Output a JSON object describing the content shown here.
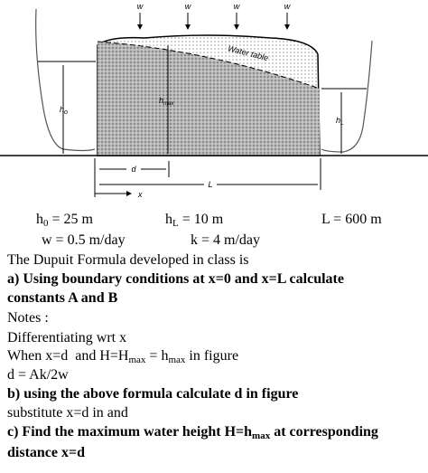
{
  "diagram": {
    "w_labels": [
      "w",
      "w",
      "w",
      "w"
    ],
    "water_table": "Water table",
    "hmax": {
      "main": "h",
      "sub": "max"
    },
    "h0": {
      "main": "h",
      "sub": "o"
    },
    "hL": {
      "main": "h",
      "sub": "L"
    },
    "d": "d",
    "x": "x",
    "L": "L"
  },
  "text": {
    "given1": {
      "h0_main": "h",
      "h0_sub": "0",
      "h0_rest": " = 25 m",
      "hL_main": "h",
      "hL_sub": "L",
      "hL_rest": " = 10 m",
      "L": "L = 600 m"
    },
    "given2": {
      "w": "w = 0.5 m/day",
      "k": "k = 4 m/day"
    },
    "intro": "The Dupuit Formula developed in class is",
    "a_line1": "a) Using boundary conditions at x=0 and x=L calculate",
    "a_line2": "constants A and B",
    "notes": "Notes :",
    "diff": "Differentiating wrt x",
    "when": {
      "p1": "When x=d  and H=H",
      "s1": "max",
      "p2": " = h",
      "s2": "max",
      "p3": " in figure"
    },
    "d_eq": "d = Ak/2w",
    "b": "b) using the above formula calculate d in figure",
    "substitute": "substitute x=d in and",
    "c_line1": {
      "p1": "c) Find the maximum water height H=h",
      "s1": "max",
      "p2": " at corresponding"
    },
    "c_line2": "distance x=d"
  }
}
